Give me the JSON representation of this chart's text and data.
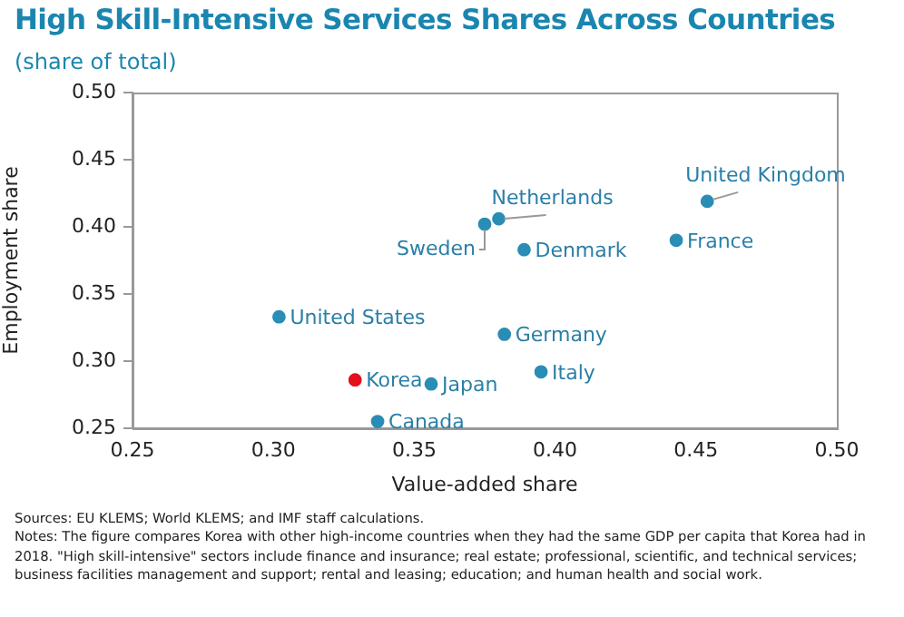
{
  "chart_data": {
    "type": "scatter",
    "title": "High Skill-Intensive Services Shares Across Countries",
    "subtitle": "(share of total)",
    "xlabel": "Value-added share",
    "ylabel": "Employment share",
    "x": [
      0.454,
      0.38,
      0.375,
      0.389,
      0.443,
      0.302,
      0.382,
      0.395,
      0.329,
      0.356,
      0.337
    ],
    "values": [
      0.419,
      0.406,
      0.402,
      0.383,
      0.39,
      0.333,
      0.32,
      0.292,
      0.286,
      0.283,
      0.255
    ],
    "colors": [
      "#2a8db5",
      "#2a8db5",
      "#2a8db5",
      "#2a8db5",
      "#2a8db5",
      "#2a8db5",
      "#2a8db5",
      "#2a8db5",
      "#e3101b",
      "#2a8db5",
      "#2a8db5"
    ],
    "xlim": [
      0.25,
      0.5
    ],
    "xticks": [
      {
        "value": 0.25,
        "label": "0.25"
      },
      {
        "value": 0.3,
        "label": "0.30"
      },
      {
        "value": 0.35,
        "label": "0.35"
      },
      {
        "value": 0.4,
        "label": "0.40"
      },
      {
        "value": 0.45,
        "label": "0.45"
      },
      {
        "value": 0.5,
        "label": "0.50"
      }
    ],
    "ylim": [
      0.25,
      0.5
    ],
    "yticks": [
      {
        "value": 0.25,
        "label": "0.25"
      },
      {
        "value": 0.3,
        "label": "0.30"
      },
      {
        "value": 0.35,
        "label": "0.35"
      },
      {
        "value": 0.4,
        "label": "0.40"
      },
      {
        "value": 0.45,
        "label": "0.45"
      },
      {
        "value": 0.5,
        "label": "0.50"
      }
    ],
    "grid": false,
    "legend": false,
    "marker": "circle",
    "annotations": [
      {
        "text": "United Kingdom",
        "x": 0.454,
        "y": 0.419
      },
      {
        "text": "Netherlands",
        "x": 0.38,
        "y": 0.406
      },
      {
        "text": "Sweden",
        "x": 0.375,
        "y": 0.402
      },
      {
        "text": "Denmark",
        "x": 0.389,
        "y": 0.383
      },
      {
        "text": "France",
        "x": 0.443,
        "y": 0.39
      },
      {
        "text": "United States",
        "x": 0.302,
        "y": 0.333
      },
      {
        "text": "Germany",
        "x": 0.382,
        "y": 0.32
      },
      {
        "text": "Italy",
        "x": 0.395,
        "y": 0.292
      },
      {
        "text": "Korea",
        "x": 0.329,
        "y": 0.286
      },
      {
        "text": "Japan",
        "x": 0.356,
        "y": 0.283
      },
      {
        "text": "Canada",
        "x": 0.337,
        "y": 0.255
      },
      "Sources: EU KLEMS; World KLEMS; and IMF staff calculations.",
      "Notes: The figure compares Korea with other high-income countries when they had the same GDP per capita that Korea had in 2018. \"High skill-intensive\" sectors include finance and insurance; real estate; professional, scientific, and technical services; business facilities management and support; rental and leasing; education; and human health and social work."
    ]
  }
}
